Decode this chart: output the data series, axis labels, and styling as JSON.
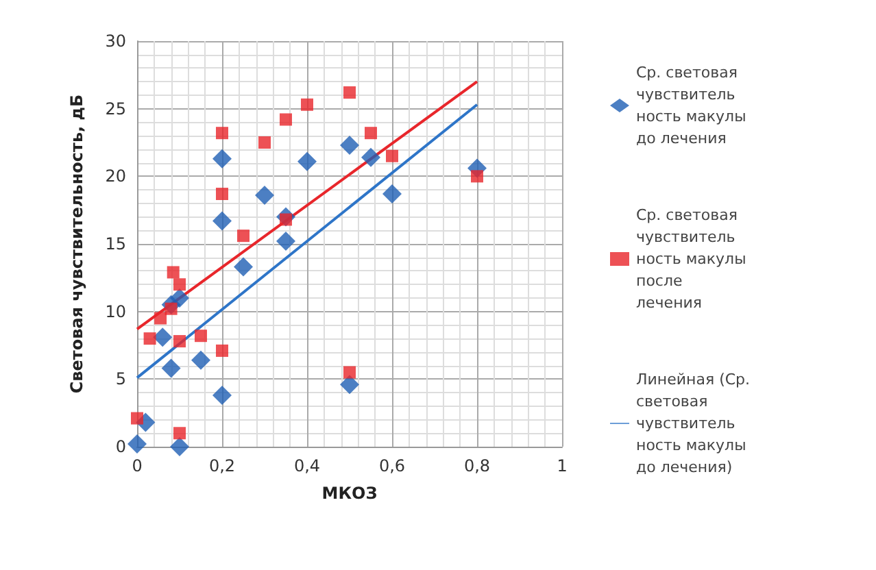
{
  "chart_data": {
    "type": "scatter",
    "xlabel": "МКОЗ",
    "ylabel": "Световая чувствительность, дБ",
    "xlim": [
      0,
      1
    ],
    "ylim": [
      0,
      30
    ],
    "xticks": [
      0,
      {
        "value": 0.2,
        "label": "0,2"
      },
      {
        "value": 0.4,
        "label": "0,4"
      },
      {
        "value": 0.6,
        "label": "0,6"
      },
      {
        "value": 0.8,
        "label": "0,8"
      },
      1
    ],
    "yticks": [
      0,
      5,
      10,
      15,
      20,
      25,
      30
    ],
    "grid": true,
    "legend": "right",
    "series": [
      {
        "name": "Ср. световая чувствительность макулы до лечения",
        "marker": "diamond",
        "color": "#1f5fb4",
        "x": [
          0,
          0.02,
          0.06,
          0.08,
          0.08,
          0.1,
          0.1,
          0.15,
          0.2,
          0.2,
          0.2,
          0.25,
          0.3,
          0.35,
          0.35,
          0.4,
          0.5,
          0.5,
          0.55,
          0.6,
          0.8
        ],
        "values": [
          0.2,
          1.8,
          8.1,
          5.8,
          10.5,
          11,
          0,
          6.4,
          3.8,
          16.7,
          21.3,
          13.3,
          18.6,
          17,
          15.2,
          21.1,
          22.3,
          4.6,
          21.4,
          18.7,
          20.6
        ]
      },
      {
        "name": "Ср. световая чувствительность макулы после лечения",
        "marker": "square",
        "color": "#e8262b",
        "x": [
          0,
          0.03,
          0.055,
          0.08,
          0.085,
          0.1,
          0.1,
          0.1,
          0.15,
          0.2,
          0.2,
          0.2,
          0.25,
          0.3,
          0.35,
          0.35,
          0.4,
          0.5,
          0.5,
          0.55,
          0.6,
          0.8
        ],
        "values": [
          2.1,
          8,
          9.5,
          10.2,
          12.9,
          12,
          7.8,
          1,
          8.2,
          7.1,
          18.7,
          23.2,
          15.6,
          22.5,
          24.2,
          16.8,
          25.3,
          26.2,
          5.5,
          23.2,
          21.5,
          20
        ]
      },
      {
        "name": "Линейная (Ср. световая чувствительность макулы до лечения)",
        "type": "line",
        "marker": "none",
        "color": "#2e75c8",
        "x": [
          0,
          0.8
        ],
        "values": [
          5.1,
          25.3
        ]
      },
      {
        "type": "line",
        "marker": "none",
        "color": "#e8262b",
        "x": [
          0,
          0.8
        ],
        "values": [
          8.7,
          27
        ]
      }
    ]
  }
}
